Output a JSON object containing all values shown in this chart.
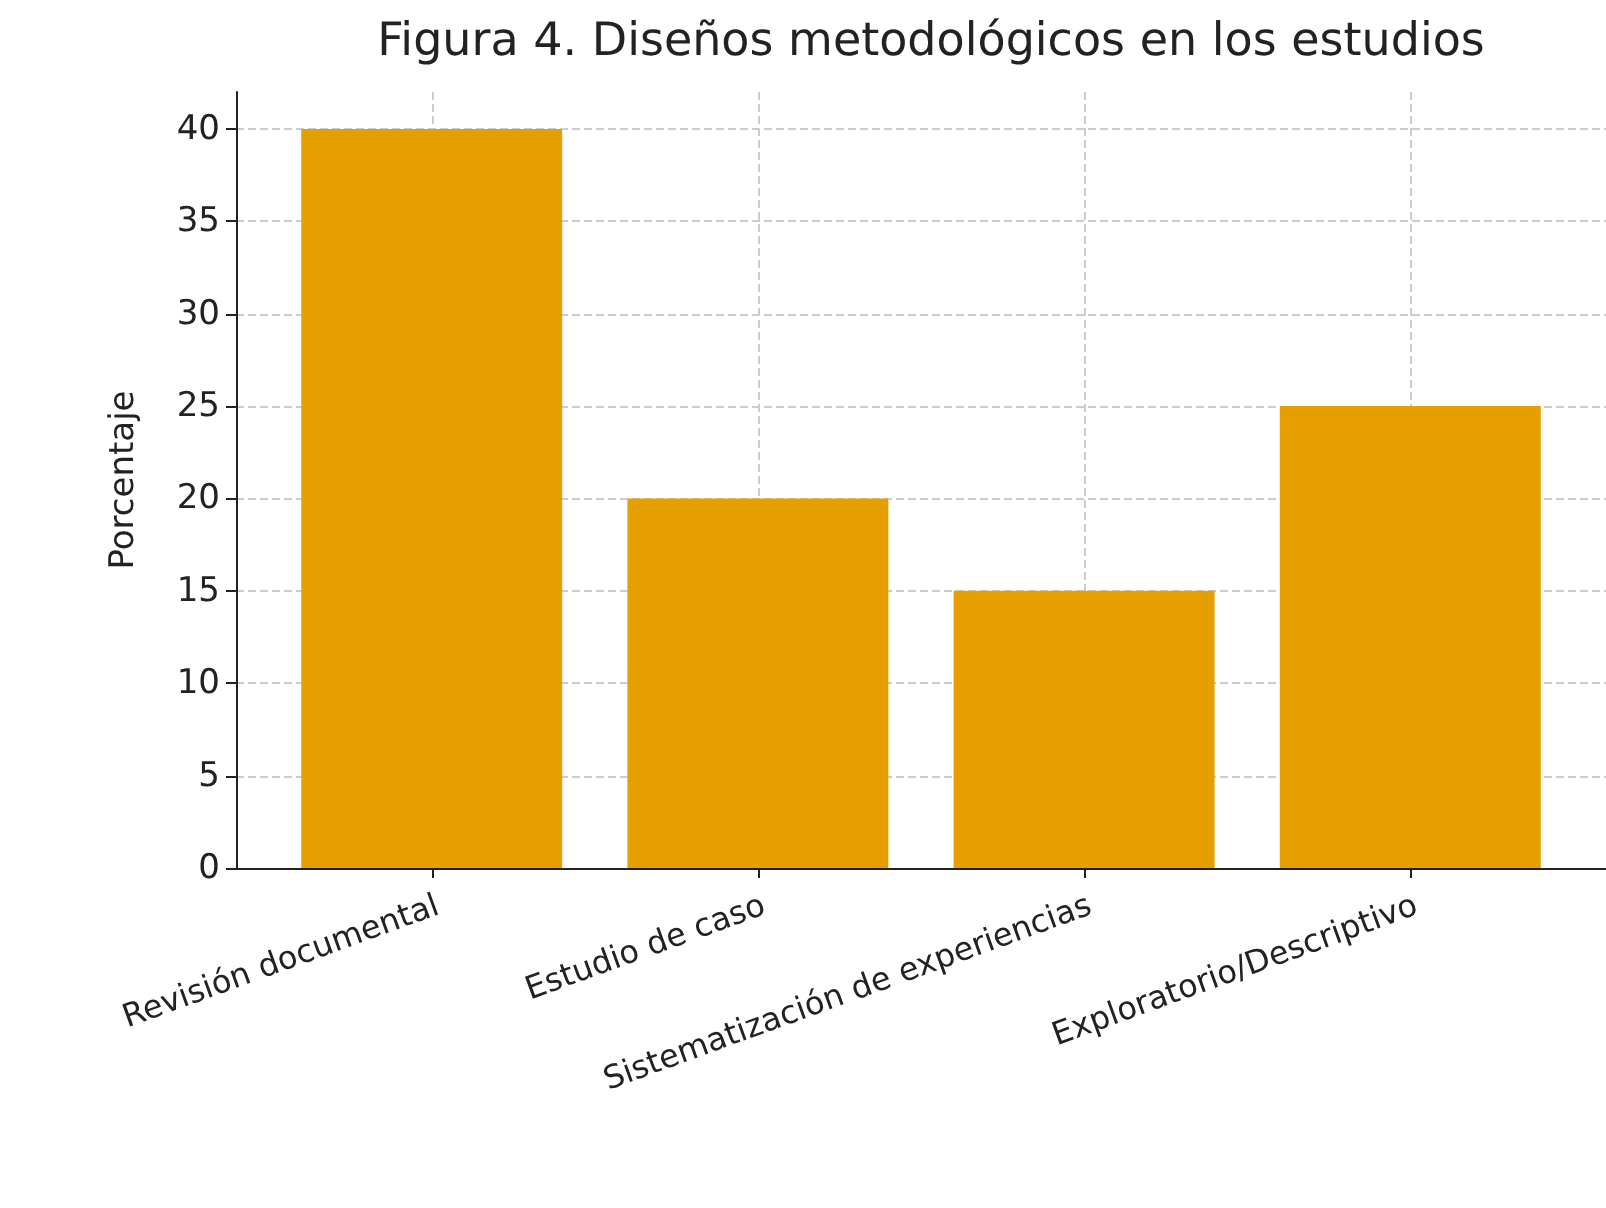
{
  "chart_data": {
    "type": "bar",
    "title": "Figura 4. Diseños metodológicos en los estudios",
    "ylabel": "Porcentaje",
    "categories": [
      "Revisión documental",
      "Estudio de caso",
      "Sistematización de experiencias",
      "Exploratorio/Descriptivo"
    ],
    "values": [
      40,
      20,
      15,
      25
    ],
    "color": "#e5a000",
    "ylim": [
      0,
      42
    ],
    "yticks": [
      0,
      5,
      10,
      15,
      20,
      25,
      30,
      35,
      40
    ],
    "grid": true
  }
}
